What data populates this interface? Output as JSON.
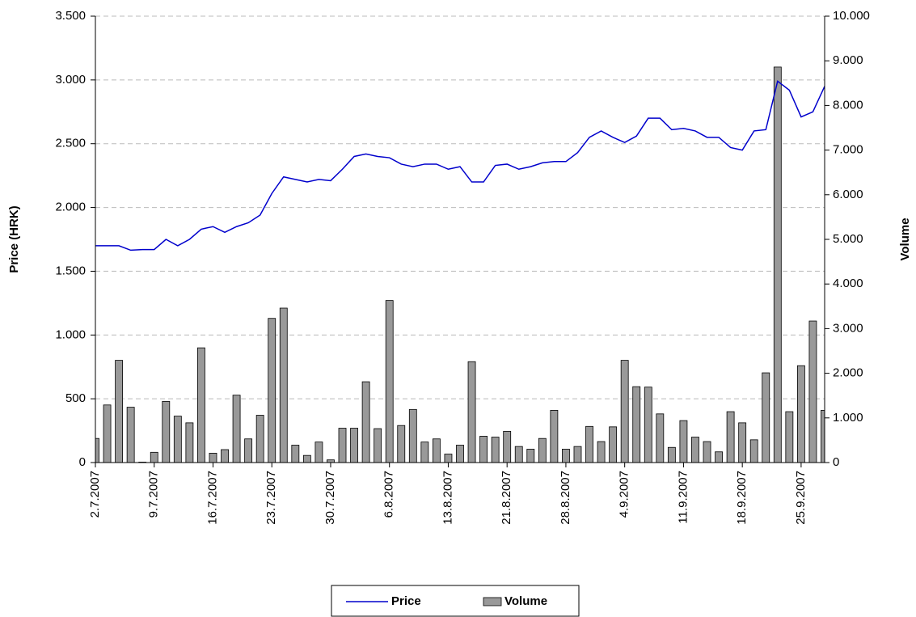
{
  "chart_data": {
    "type": "combo",
    "y_label": "Price (HRK)",
    "y2_label": "Volume",
    "categories": [
      "2.7.2007",
      null,
      null,
      null,
      null,
      "9.7.2007",
      null,
      null,
      null,
      null,
      "16.7.2007",
      null,
      null,
      null,
      null,
      "23.7.2007",
      null,
      null,
      null,
      null,
      "30.7.2007",
      null,
      null,
      null,
      null,
      "6.8.2007",
      null,
      null,
      null,
      null,
      "13.8.2007",
      null,
      null,
      null,
      null,
      "21.8.2007",
      null,
      null,
      null,
      null,
      "28.8.2007",
      null,
      null,
      null,
      null,
      "4.9.2007",
      null,
      null,
      null,
      null,
      "11.9.2007",
      null,
      null,
      null,
      null,
      "18.9.2007",
      null,
      null,
      null,
      null,
      "25.9.2007",
      null,
      null
    ],
    "series": [
      {
        "name": "Price",
        "type": "line",
        "color": "#0000cc",
        "values": [
          1700,
          1700,
          1700,
          1665,
          1670,
          1670,
          1750,
          1700,
          1750,
          1830,
          1850,
          1805,
          1850,
          1880,
          1940,
          2110,
          2240,
          2220,
          2200,
          2220,
          2210,
          2300,
          2400,
          2420,
          2400,
          2390,
          2340,
          2320,
          2340,
          2340,
          2300,
          2320,
          2200,
          2200,
          2330,
          2340,
          2300,
          2320,
          2350,
          2360,
          2360,
          2430,
          2550,
          2600,
          2550,
          2510,
          2560,
          2700,
          2700,
          2610,
          2620,
          2600,
          2550,
          2550,
          2470,
          2450,
          2600,
          2610,
          2990,
          2920,
          2710,
          2750,
          2950
        ]
      },
      {
        "name": "Volume",
        "type": "bar",
        "axis": "y2",
        "color": "#999999",
        "values": [
          540,
          1290,
          2290,
          1240,
          10,
          230,
          1370,
          1040,
          890,
          2570,
          210,
          290,
          1510,
          530,
          1060,
          3230,
          3460,
          390,
          160,
          460,
          60,
          770,
          770,
          1810,
          760,
          3630,
          830,
          1190,
          460,
          530,
          190,
          390,
          2260,
          590,
          570,
          700,
          360,
          300,
          540,
          1170,
          300,
          360,
          810,
          470,
          800,
          2290,
          1700,
          1690,
          1090,
          340,
          940,
          570,
          470,
          240,
          1140,
          890,
          510,
          2010,
          8860,
          1140,
          2170,
          3170,
          1170
        ]
      }
    ],
    "ylim": [
      0,
      3500
    ],
    "yticks": [
      0,
      500,
      {
        "value": 1000,
        "label": "1.000"
      },
      {
        "value": 1500,
        "label": "1.500"
      },
      {
        "value": 2000,
        "label": "2.000"
      },
      {
        "value": 2500,
        "label": "2.500"
      },
      {
        "value": 3000,
        "label": "3.000"
      },
      {
        "value": 3500,
        "label": "3.500"
      }
    ],
    "y2lim": [
      0,
      10000
    ],
    "y2ticks": [
      0,
      {
        "value": 1000,
        "label": "1.000"
      },
      {
        "value": 2000,
        "label": "2.000"
      },
      {
        "value": 3000,
        "label": "3.000"
      },
      {
        "value": 4000,
        "label": "4.000"
      },
      {
        "value": 5000,
        "label": "5.000"
      },
      {
        "value": 6000,
        "label": "6.000"
      },
      {
        "value": 7000,
        "label": "7.000"
      },
      {
        "value": 8000,
        "label": "8.000"
      },
      {
        "value": 9000,
        "label": "9.000"
      },
      {
        "value": 10000,
        "label": "10.000"
      }
    ],
    "grid": true,
    "legend": "bottom"
  }
}
